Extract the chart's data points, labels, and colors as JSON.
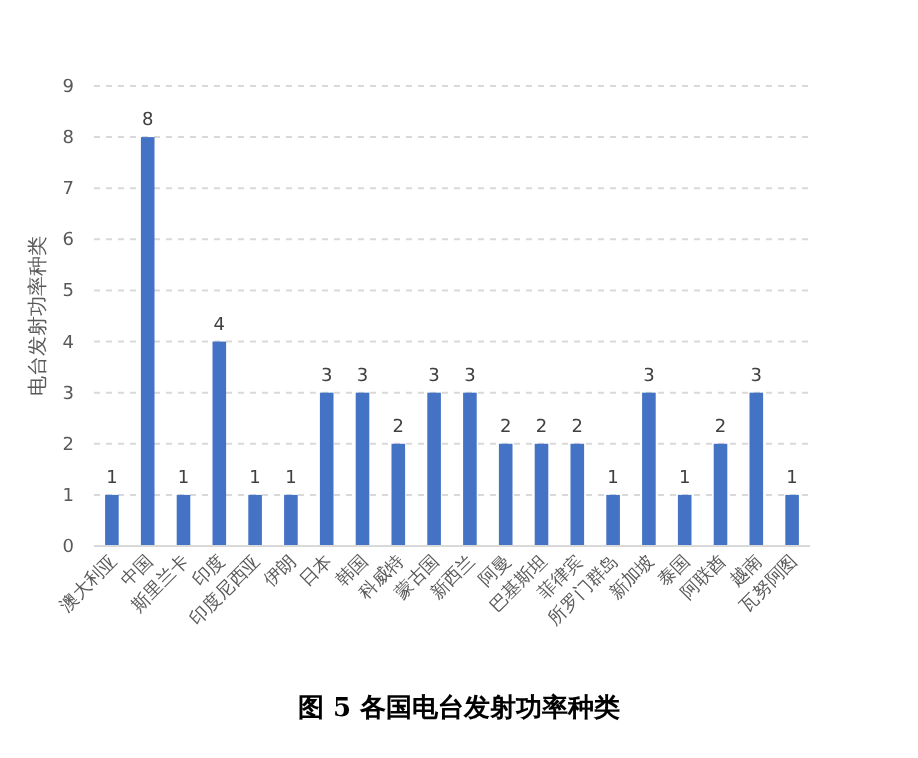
{
  "chart_data": {
    "type": "bar",
    "title": "图 5 各国电台发射功率种类",
    "ylabel": "电台发射功率种类",
    "categories": [
      "澳大利亚",
      "中国",
      "斯里兰卡",
      "印度",
      "印度尼西亚",
      "伊朗",
      "日本",
      "韩国",
      "科威特",
      "蒙古国",
      "新西兰",
      "阿曼",
      "巴基斯坦",
      "菲律宾",
      "所罗门群岛",
      "新加坡",
      "泰国",
      "阿联酋",
      "越南",
      "瓦努阿图"
    ],
    "values": [
      1,
      8,
      1,
      4,
      1,
      1,
      3,
      3,
      2,
      3,
      3,
      2,
      2,
      2,
      1,
      3,
      1,
      2,
      3,
      1
    ],
    "color": "#4472c4",
    "ylim": [
      0,
      9
    ],
    "yticks": [
      0,
      1,
      2,
      3,
      4,
      5,
      6,
      7,
      8,
      9
    ],
    "grid": "y",
    "data_labels": true
  }
}
